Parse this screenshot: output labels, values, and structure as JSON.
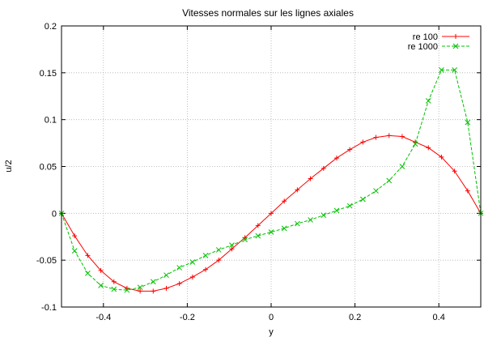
{
  "chart_data": {
    "type": "line",
    "title": "Vitesses normales sur les lignes axiales",
    "xlabel": "y",
    "ylabel": "u/2",
    "xlim": [
      -0.5,
      0.5
    ],
    "ylim": [
      -0.1,
      0.2
    ],
    "xticks": [
      -0.4,
      -0.2,
      0,
      0.2,
      0.4
    ],
    "xtick_labels": [
      "-0.4",
      "-0.2",
      "0",
      "0.2",
      "0.4"
    ],
    "yticks": [
      -0.1,
      -0.05,
      0,
      0.05,
      0.1,
      0.15,
      0.2
    ],
    "ytick_labels": [
      "-0.1",
      "-0.05",
      "0",
      "0.05",
      "0.1",
      "0.15",
      "0.2"
    ],
    "grid": true,
    "legend_position": "top-right",
    "series": [
      {
        "name": "re 100",
        "color": "#ff0000",
        "marker": "plus",
        "x": [
          -0.5,
          -0.4688,
          -0.4375,
          -0.4063,
          -0.375,
          -0.3438,
          -0.3125,
          -0.2813,
          -0.25,
          -0.2188,
          -0.1875,
          -0.1563,
          -0.125,
          -0.0938,
          -0.0625,
          -0.0313,
          0,
          0.0313,
          0.0625,
          0.0938,
          0.125,
          0.1563,
          0.1875,
          0.2188,
          0.25,
          0.2813,
          0.3125,
          0.3438,
          0.375,
          0.4063,
          0.4375,
          0.4688,
          0.5
        ],
        "y": [
          0,
          -0.024,
          -0.045,
          -0.061,
          -0.073,
          -0.08,
          -0.083,
          -0.083,
          -0.08,
          -0.075,
          -0.068,
          -0.06,
          -0.05,
          -0.038,
          -0.026,
          -0.013,
          0.0,
          0.013,
          0.025,
          0.037,
          0.048,
          0.059,
          0.068,
          0.076,
          0.081,
          0.083,
          0.082,
          0.076,
          0.07,
          0.06,
          0.045,
          0.024,
          0
        ]
      },
      {
        "name": "re 1000",
        "color": "#00c000",
        "marker": "cross",
        "x": [
          -0.5,
          -0.4688,
          -0.4375,
          -0.4063,
          -0.375,
          -0.3438,
          -0.3125,
          -0.2813,
          -0.25,
          -0.2188,
          -0.1875,
          -0.1563,
          -0.125,
          -0.0938,
          -0.0625,
          -0.0313,
          0,
          0.0313,
          0.0625,
          0.0938,
          0.125,
          0.1563,
          0.1875,
          0.2188,
          0.25,
          0.2813,
          0.3125,
          0.3438,
          0.375,
          0.4063,
          0.4375,
          0.4688,
          0.5
        ],
        "y": [
          0,
          -0.04,
          -0.064,
          -0.077,
          -0.081,
          -0.082,
          -0.079,
          -0.073,
          -0.066,
          -0.058,
          -0.052,
          -0.045,
          -0.039,
          -0.034,
          -0.028,
          -0.024,
          -0.02,
          -0.016,
          -0.011,
          -0.007,
          -0.002,
          0.003,
          0.008,
          0.015,
          0.024,
          0.035,
          0.05,
          0.074,
          0.12,
          0.153,
          0.153,
          0.097,
          0
        ]
      }
    ]
  }
}
